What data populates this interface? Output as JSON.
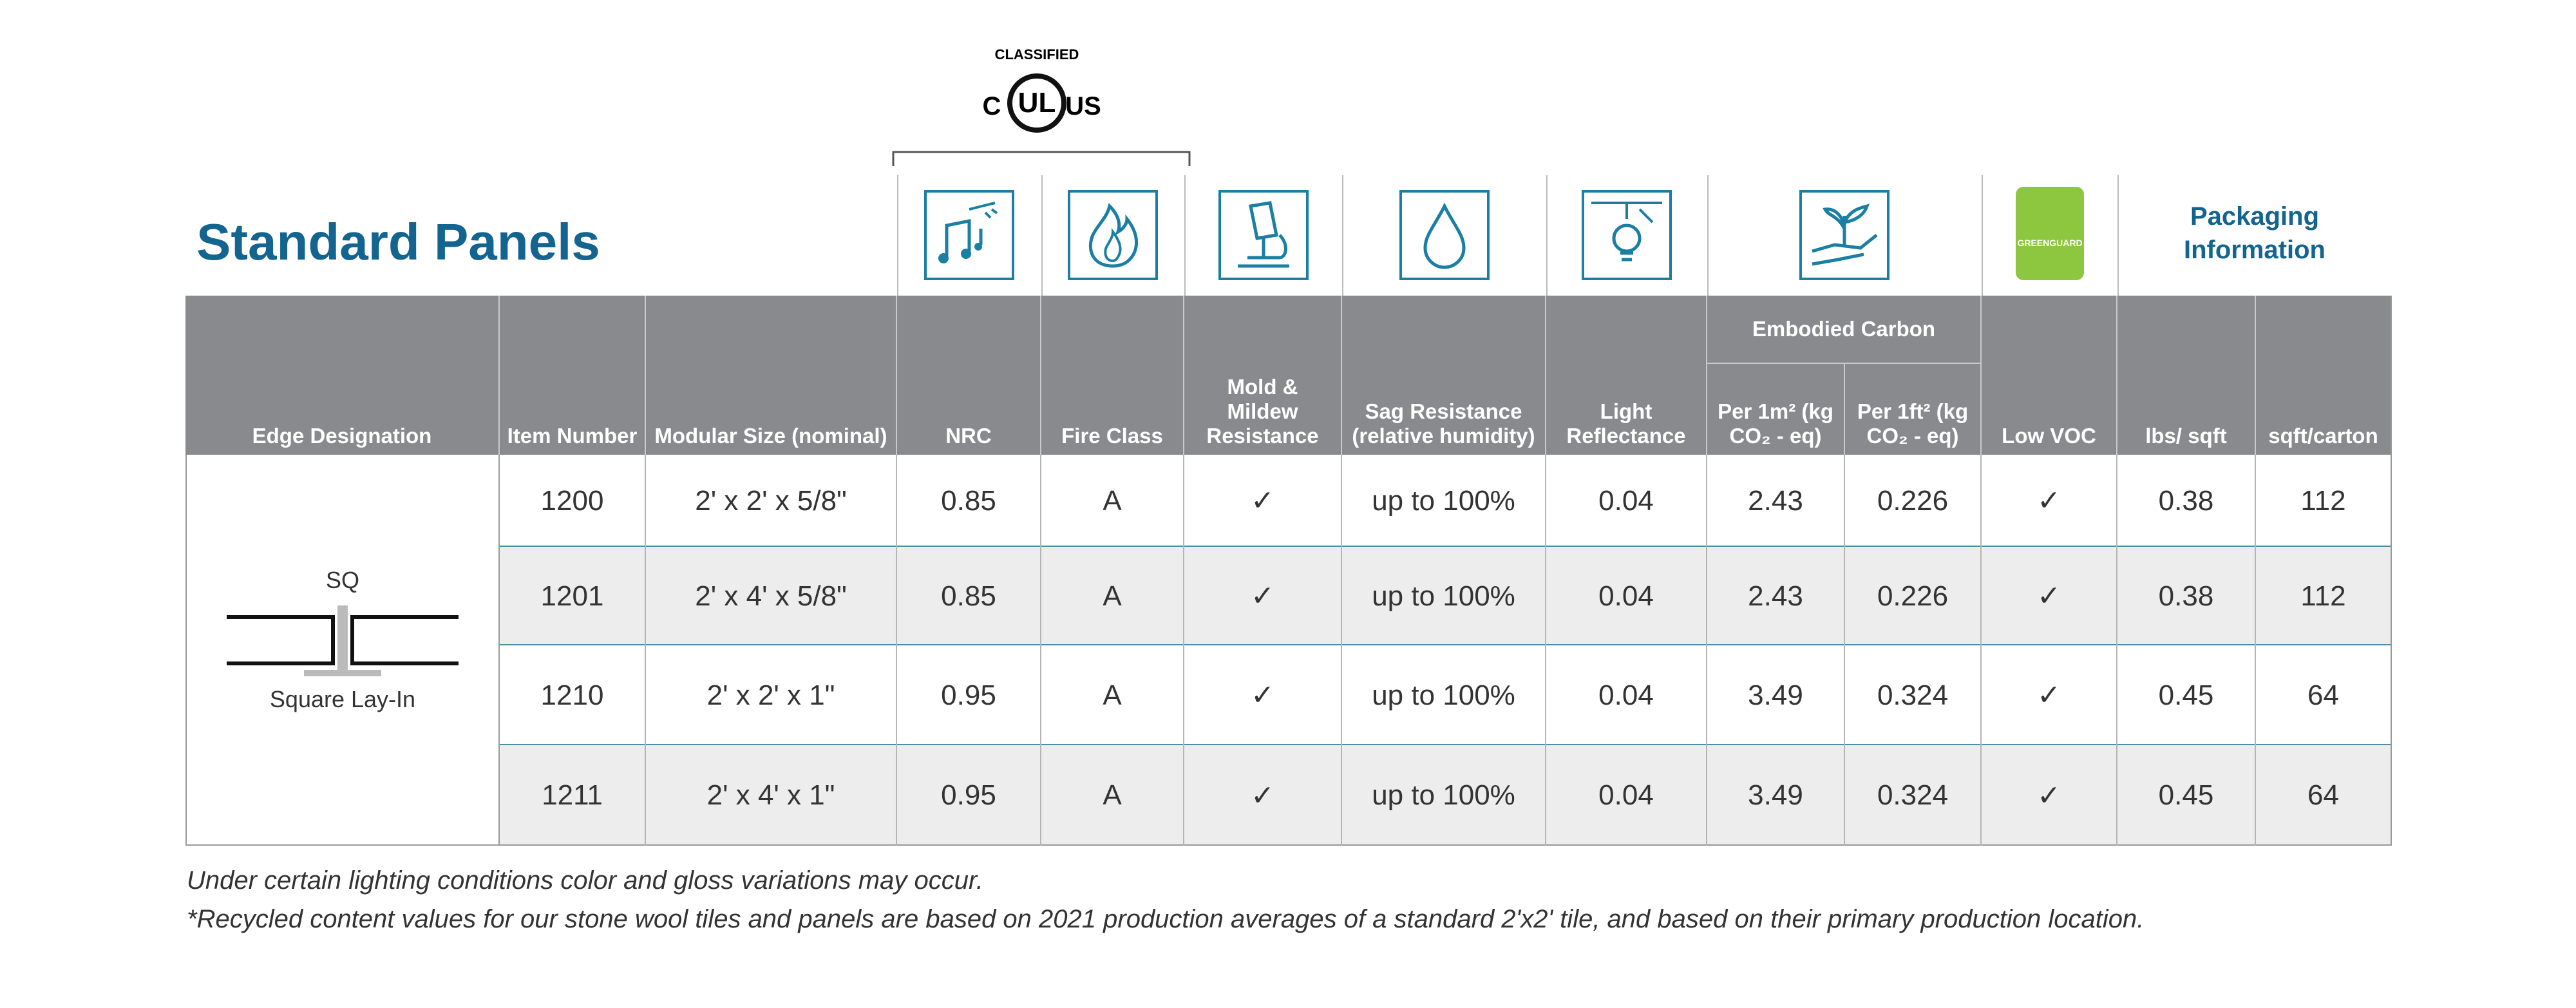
{
  "header": {
    "title": "Standard Panels"
  },
  "logo": {
    "classified": "CLASSIFIED",
    "c": "C",
    "ul": "UL",
    "us": "US"
  },
  "greenguard": "GREENGUARD",
  "packaging": "Packaging Information",
  "table": {
    "columns": [
      "Edge Designation",
      "Item Number",
      "Modular Size (nominal)",
      "NRC",
      "Fire Class",
      "Mold & Mildew Resistance",
      "Sag Resistance (relative humidity)",
      "Light Reflectance",
      "Per 1m² (kg CO₂ - eq)",
      "Per 1ft² (kg CO₂ - eq)",
      "Low VOC",
      "lbs/ sqft",
      "sqft/carton"
    ],
    "group": "Embodied Carbon",
    "edge": {
      "code": "SQ",
      "name": "Square Lay-In"
    },
    "rows": [
      [
        "1200",
        "2' x 2' x 5/8\"",
        "0.85",
        "A",
        "✓",
        "up to 100%",
        "0.04",
        "2.43",
        "0.226",
        "✓",
        "0.38",
        "112"
      ],
      [
        "1201",
        "2' x 4' x 5/8\"",
        "0.85",
        "A",
        "✓",
        "up to 100%",
        "0.04",
        "2.43",
        "0.226",
        "✓",
        "0.38",
        "112"
      ],
      [
        "1210",
        "2' x 2' x 1\"",
        "0.95",
        "A",
        "✓",
        "up to 100%",
        "0.04",
        "3.49",
        "0.324",
        "✓",
        "0.45",
        "64"
      ],
      [
        "1211",
        "2' x 4' x 1\"",
        "0.95",
        "A",
        "✓",
        "up to 100%",
        "0.04",
        "3.49",
        "0.324",
        "✓",
        "0.45",
        "64"
      ]
    ]
  },
  "notes": [
    "Under certain lighting conditions color and gloss variations may occur.",
    "*Recycled content values for our stone wool tiles and panels are based on 2021 production averages of a standard 2'x2' tile, and based on their primary production location."
  ]
}
